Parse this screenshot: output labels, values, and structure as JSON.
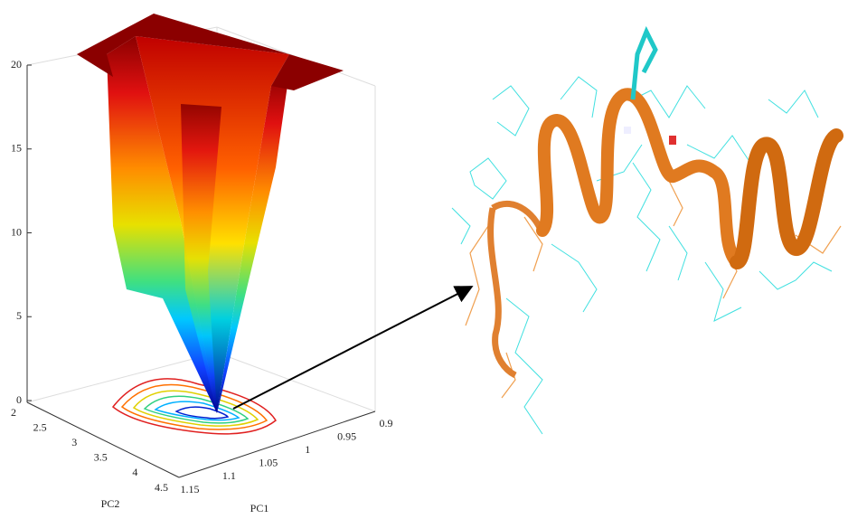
{
  "surface_plot": {
    "z_ticks": [
      0,
      5,
      10,
      15,
      20
    ],
    "pc2_ticks": [
      2,
      2.5,
      3,
      3.5,
      4,
      4.5
    ],
    "pc1_ticks": [
      1.15,
      1.1,
      1.05,
      1,
      0.95,
      0.9
    ],
    "pc2_label": "PC2",
    "pc1_label": "PC1"
  }
}
